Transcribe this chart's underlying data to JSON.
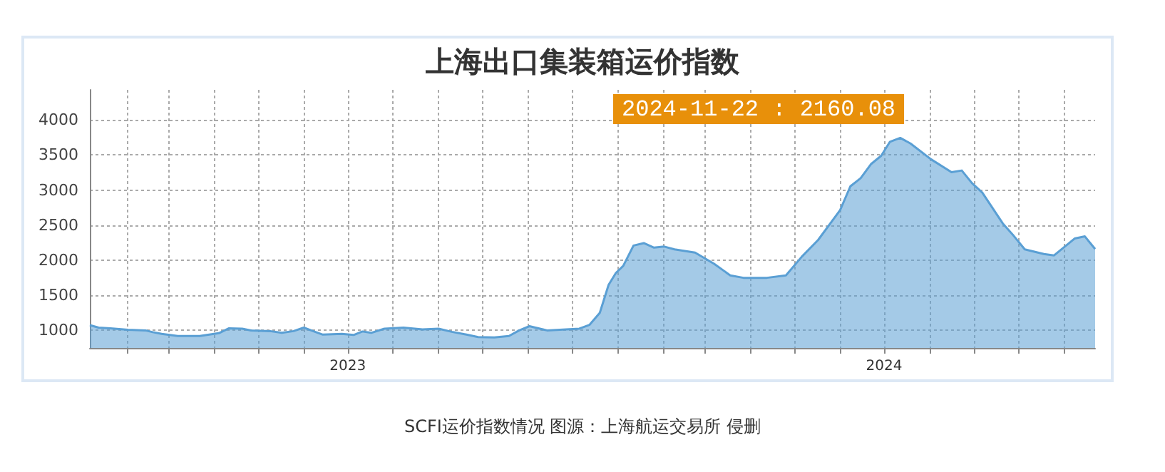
{
  "chart_data": {
    "type": "area",
    "title": "上海出口集装箱运价指数",
    "annotations": [
      "2024-11-22 : 2160.08",
      "SCFI运价指数情况 图源：上海航运交易所 侵删"
    ],
    "x": [
      "2023-01-06",
      "2023-01-12",
      "2023-01-20",
      "2023-02-01",
      "2023-02-13",
      "2023-02-18",
      "2023-02-24",
      "2023-03-07",
      "2023-03-22",
      "2023-04-04",
      "2023-04-11",
      "2023-04-20",
      "2023-04-26",
      "2023-05-09",
      "2023-05-17",
      "2023-05-25",
      "2023-06-01",
      "2023-06-08",
      "2023-06-14",
      "2023-06-27",
      "2023-07-05",
      "2023-07-11",
      "2023-07-17",
      "2023-07-26",
      "2023-08-08",
      "2023-08-21",
      "2023-09-01",
      "2023-09-10",
      "2023-09-20",
      "2023-09-28",
      "2023-10-09",
      "2023-10-19",
      "2023-10-26",
      "2023-11-02",
      "2023-11-14",
      "2023-11-27",
      "2023-12-06",
      "2023-12-13",
      "2023-12-20",
      "2023-12-26",
      "2023-12-31",
      "2024-01-05",
      "2024-01-12",
      "2024-01-19",
      "2024-01-26",
      "2024-02-02",
      "2024-02-09",
      "2024-02-23",
      "2024-03-07",
      "2024-03-18",
      "2024-03-27",
      "2024-04-12",
      "2024-04-25",
      "2024-05-06",
      "2024-05-17",
      "2024-06-01",
      "2024-06-08",
      "2024-06-15",
      "2024-06-22",
      "2024-06-29",
      "2024-07-05",
      "2024-07-12",
      "2024-07-19",
      "2024-08-02",
      "2024-08-16",
      "2024-08-23",
      "2024-08-30",
      "2024-09-06",
      "2024-09-20",
      "2024-09-27",
      "2024-10-05",
      "2024-10-18",
      "2024-10-25",
      "2024-11-08",
      "2024-11-15",
      "2024-11-22"
    ],
    "values": [
      1075,
      1040,
      1030,
      1010,
      1000,
      975,
      950,
      920,
      920,
      960,
      1030,
      1025,
      1000,
      990,
      965,
      990,
      1040,
      985,
      940,
      950,
      935,
      985,
      965,
      1025,
      1040,
      1015,
      1025,
      980,
      940,
      905,
      900,
      920,
      1000,
      1060,
      1000,
      1015,
      1025,
      1080,
      1250,
      1650,
      1820,
      1920,
      2210,
      2245,
      2180,
      2195,
      2155,
      2110,
      1950,
      1785,
      1750,
      1750,
      1785,
      2055,
      2290,
      2715,
      3055,
      3170,
      3370,
      3490,
      3690,
      3745,
      3665,
      3440,
      3255,
      3280,
      3100,
      2965,
      2525,
      2360,
      2155,
      2090,
      2070,
      2310,
      2340,
      2160.08
    ],
    "color": "#5a9fd4",
    "xlim": [
      "2023-01-06",
      "2024-11-22"
    ],
    "xticks": [
      {
        "value": "2023-02-01",
        "label": null
      },
      {
        "value": "2023-03-01",
        "label": null
      },
      {
        "value": "2023-04-01",
        "label": null
      },
      {
        "value": "2023-05-01",
        "label": null
      },
      {
        "value": "2023-06-01",
        "label": null
      },
      {
        "value": "2023-07-01",
        "label": "2023"
      },
      {
        "value": "2023-08-01",
        "label": null
      },
      {
        "value": "2023-09-01",
        "label": null
      },
      {
        "value": "2023-10-01",
        "label": null
      },
      {
        "value": "2023-11-01",
        "label": null
      },
      {
        "value": "2023-12-01",
        "label": null
      },
      {
        "value": "2024-01-01",
        "label": null
      },
      {
        "value": "2024-02-01",
        "label": null
      },
      {
        "value": "2024-03-01",
        "label": null
      },
      {
        "value": "2024-04-01",
        "label": null
      },
      {
        "value": "2024-05-01",
        "label": null
      },
      {
        "value": "2024-06-01",
        "label": null
      },
      {
        "value": "2024-07-01",
        "label": "2024"
      },
      {
        "value": "2024-08-01",
        "label": null
      },
      {
        "value": "2024-09-01",
        "label": null
      },
      {
        "value": "2024-10-01",
        "label": null
      },
      {
        "value": "2024-11-01",
        "label": null
      }
    ],
    "ylim": [
      750,
      4430
    ],
    "yticks": [
      1000,
      1500,
      2000,
      2500,
      3000,
      3500,
      4000
    ],
    "grid": true
  }
}
